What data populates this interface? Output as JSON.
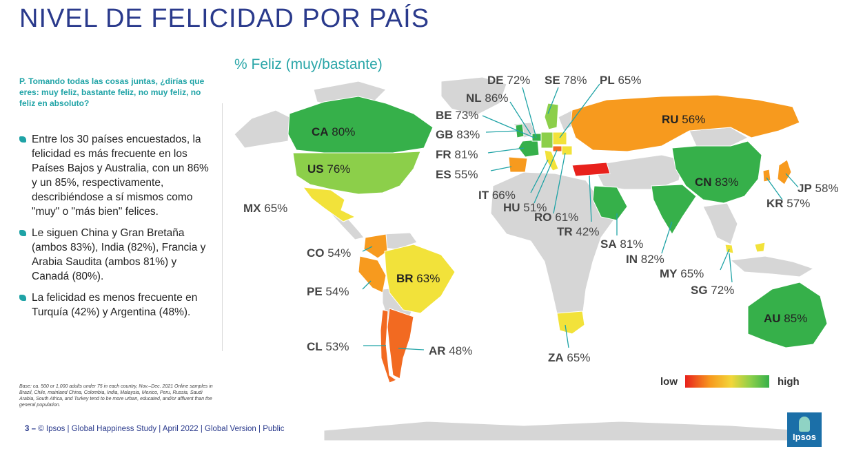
{
  "title": "NIVEL DE FELICIDAD POR PAÍS",
  "subtitle": "% Feliz (muy/bastante)",
  "question": "P. Tomando todas las cosas juntas, ¿dirías que eres: muy feliz, bastante feliz, no muy feliz, no feliz en absoluto?",
  "bullets": [
    "Entre los 30 países encuestados, la felicidad es más frecuente en los Países Bajos y Australia, con un 86% y un 85%, respectivamente, describiéndose a sí mismos como \"muy\" o \"más bien\" felices.",
    "Le siguen China y Gran Bretaña (ambos 83%), India (82%), Francia y Arabia Saudita (ambos 81%) y Canadá (80%).",
    "La felicidad es menos frecuente en Turquía (42%) y Argentina (48%)."
  ],
  "base_note": "Base: ca. 500 or 1,000 adults under 75 in each country, Nov.–Dec. 2021 Online samples in Brazil, Chile, mainland China, Colombia, India, Malaysia, Mexico, Peru, Russia, Saudi Arabia, South Africa, and Turkey tend to be more urban, educated, and/or affluent than the general population.",
  "footer": {
    "page": "3 –",
    "text": "© Ipsos | Global Happiness Study | April 2022 | Global Version | Public"
  },
  "legend": {
    "low": "low",
    "high": "high"
  },
  "logo": "Ipsos",
  "countries": [
    {
      "code": "CA",
      "value": "80%"
    },
    {
      "code": "US",
      "value": "76%"
    },
    {
      "code": "MX",
      "value": "65%"
    },
    {
      "code": "CO",
      "value": "54%"
    },
    {
      "code": "PE",
      "value": "54%"
    },
    {
      "code": "BR",
      "value": "63%"
    },
    {
      "code": "CL",
      "value": "53%"
    },
    {
      "code": "AR",
      "value": "48%"
    },
    {
      "code": "DE",
      "value": "72%"
    },
    {
      "code": "SE",
      "value": "78%"
    },
    {
      "code": "PL",
      "value": "65%"
    },
    {
      "code": "NL",
      "value": "86%"
    },
    {
      "code": "BE",
      "value": "73%"
    },
    {
      "code": "GB",
      "value": "83%"
    },
    {
      "code": "FR",
      "value": "81%"
    },
    {
      "code": "ES",
      "value": "55%"
    },
    {
      "code": "IT",
      "value": "66%"
    },
    {
      "code": "HU",
      "value": "51%"
    },
    {
      "code": "RO",
      "value": "61%"
    },
    {
      "code": "TR",
      "value": "42%"
    },
    {
      "code": "RU",
      "value": "56%"
    },
    {
      "code": "CN",
      "value": "83%"
    },
    {
      "code": "JP",
      "value": "58%"
    },
    {
      "code": "KR",
      "value": "57%"
    },
    {
      "code": "SA",
      "value": "81%"
    },
    {
      "code": "IN",
      "value": "82%"
    },
    {
      "code": "MY",
      "value": "65%"
    },
    {
      "code": "SG",
      "value": "72%"
    },
    {
      "code": "AU",
      "value": "85%"
    },
    {
      "code": "ZA",
      "value": "65%"
    }
  ],
  "colors": {
    "title": "#2a3a8c",
    "accent": "#1fa3a6",
    "very_high": "#36b04a",
    "high": "#8ccf4a",
    "mid": "#f2e23a",
    "low_mid": "#f79a1e",
    "low": "#f26a21",
    "very_low": "#e8211c",
    "unsurveyed": "#d6d6d6"
  }
}
